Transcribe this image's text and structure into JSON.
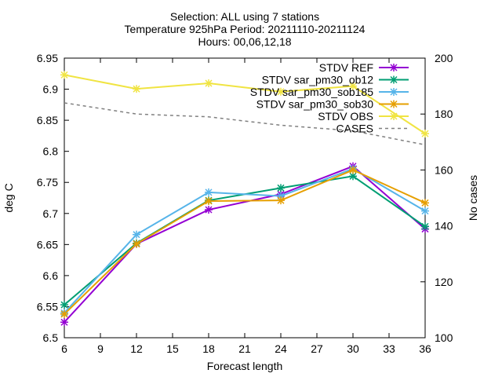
{
  "chart_data": {
    "type": "line",
    "title_lines": [
      "Selection: ALL using      7 stations",
      "Temperature 925hPa    Period: 20211110-20211124",
      "Hours: 00,06,12,18"
    ],
    "xlabel": "Forecast length",
    "ylabel": "deg C",
    "y2label": "No cases",
    "x": [
      6,
      12,
      18,
      24,
      30,
      36
    ],
    "xlim": [
      6,
      36
    ],
    "xticks": [
      "6",
      "9",
      "12",
      "15",
      "18",
      "21",
      "24",
      "27",
      "30",
      "33",
      "36"
    ],
    "ylim": [
      6.5,
      6.95
    ],
    "yticks": [
      "6.5",
      "6.55",
      "6.6",
      "6.65",
      "6.7",
      "6.75",
      "6.8",
      "6.85",
      "6.9",
      "6.95"
    ],
    "y2lim": [
      100,
      200
    ],
    "y2ticks": [
      "100",
      "120",
      "140",
      "160",
      "180",
      "200"
    ],
    "grid": false,
    "legend_position": "top-right",
    "series": [
      {
        "name": "STDV REF",
        "color": "#9400d3",
        "marker": "x-cross",
        "axis": "left",
        "values": [
          6.525,
          6.651,
          6.706,
          6.731,
          6.776,
          6.675
        ]
      },
      {
        "name": "STDV sar_pm30_ob12",
        "color": "#009e73",
        "marker": "x-cross",
        "axis": "left",
        "values": [
          6.553,
          6.652,
          6.721,
          6.741,
          6.76,
          6.679
        ]
      },
      {
        "name": "STDV sar_pm30_sob185",
        "color": "#56b4e9",
        "marker": "x-cross",
        "axis": "left",
        "values": [
          6.54,
          6.666,
          6.734,
          6.728,
          6.772,
          6.704
        ]
      },
      {
        "name": "STDV sar_pm30_sob30",
        "color": "#e69f00",
        "marker": "x-cross",
        "axis": "left",
        "values": [
          6.538,
          6.651,
          6.72,
          6.721,
          6.77,
          6.717
        ]
      },
      {
        "name": "STDV OBS",
        "color": "#f0e442",
        "marker": "x-cross",
        "axis": "right",
        "values": [
          194,
          189,
          191,
          188,
          190,
          173
        ]
      },
      {
        "name": "CASES",
        "color": "#808080",
        "marker": "none",
        "dash": true,
        "axis": "right",
        "values": [
          184,
          180,
          179,
          176,
          174,
          169
        ]
      }
    ]
  }
}
